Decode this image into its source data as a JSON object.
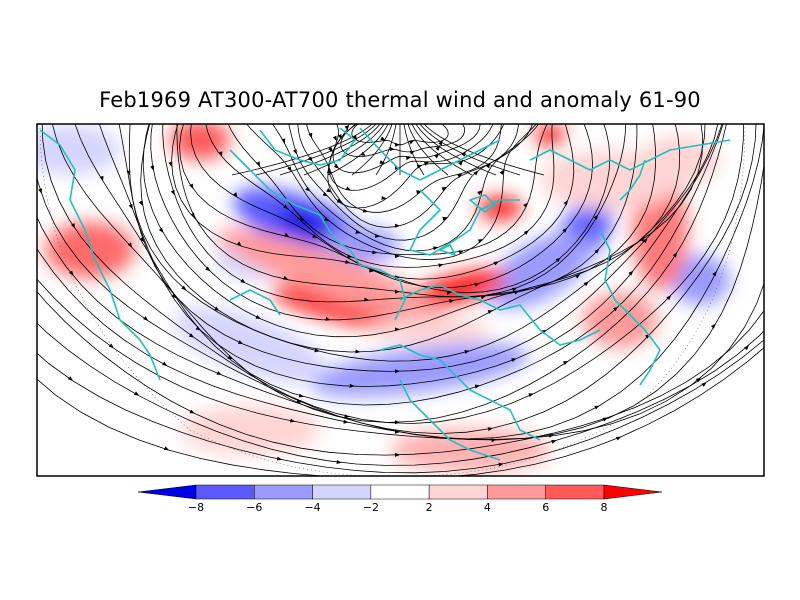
{
  "title": "Feb1969 AT300-AT700 thermal wind and anomaly 61-90",
  "colorbar": {
    "tick_labels": [
      "-8",
      "-6",
      "-4",
      "-2",
      "2",
      "4",
      "6",
      "8"
    ],
    "colors": [
      "#0000e6",
      "#5a5aff",
      "#9a9aff",
      "#d4d4ff",
      "#ffffff",
      "#ffd4d4",
      "#ff9a9a",
      "#ff5a5a",
      "#ff0000"
    ]
  },
  "map": {
    "coast_color": "#20c0c0",
    "streamline_color": "#000000"
  }
}
